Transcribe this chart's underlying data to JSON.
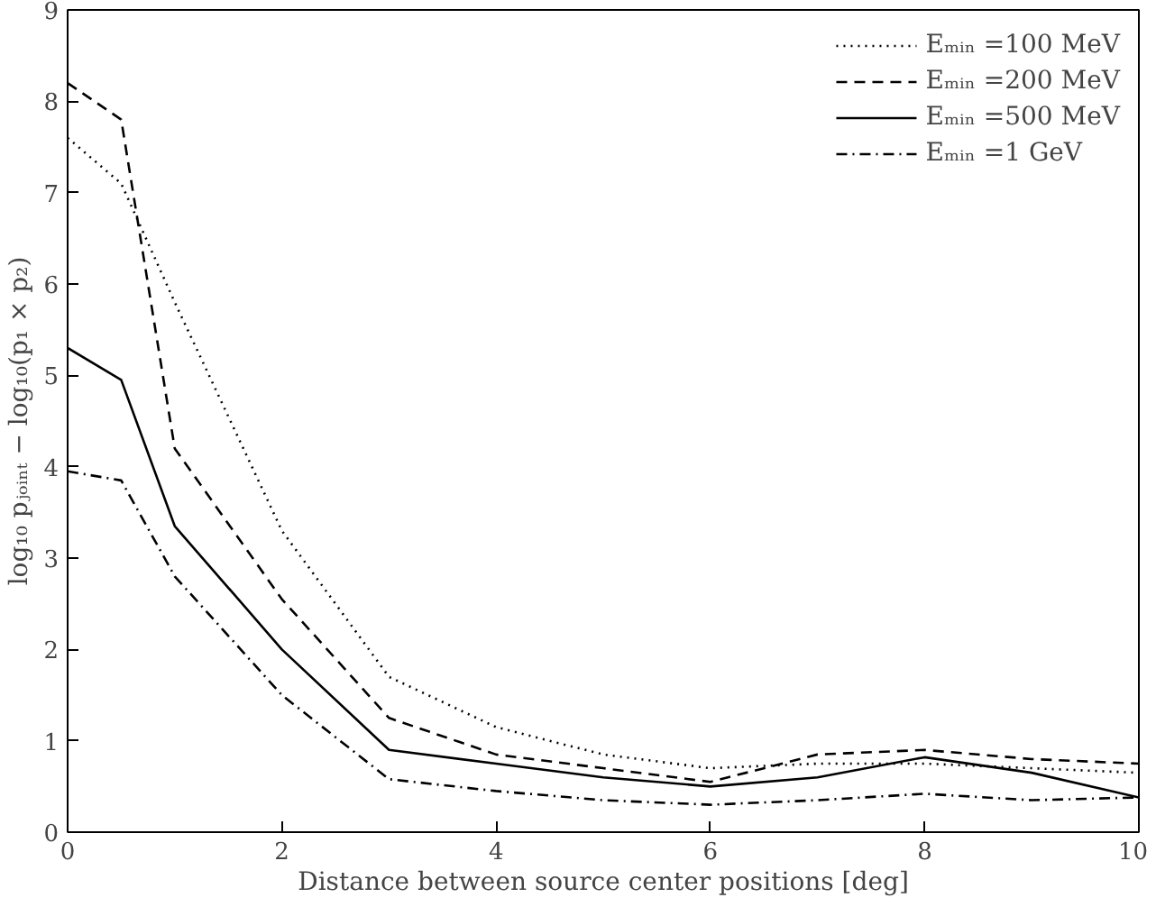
{
  "chart_data": {
    "type": "line",
    "xlabel": "Distance between source center positions [deg]",
    "ylabel": "log₁₀ pⱼₒᵢₙₜ − log₁₀(p₁ × p₂)",
    "x": [
      0,
      0.5,
      1,
      2,
      3,
      4,
      5,
      6,
      7,
      8,
      9,
      10
    ],
    "xlim": [
      0,
      10
    ],
    "ylim": [
      0,
      9
    ],
    "xticks": [
      0,
      2,
      4,
      6,
      8,
      10
    ],
    "yticks": [
      0,
      1,
      2,
      3,
      4,
      5,
      6,
      7,
      8,
      9
    ],
    "grid": false,
    "legend": "top right",
    "marker": "none",
    "series": [
      {
        "name": "Eₘᵢₙ =100 MeV",
        "color": "#000000",
        "line_style": "dotted",
        "values": [
          7.6,
          7.1,
          5.8,
          3.3,
          1.7,
          1.15,
          0.85,
          0.7,
          0.75,
          0.75,
          0.7,
          0.65
        ]
      },
      {
        "name": "Eₘᵢₙ =200 MeV",
        "color": "#000000",
        "line_style": "dashed",
        "values": [
          8.2,
          7.8,
          4.2,
          2.55,
          1.25,
          0.85,
          0.7,
          0.55,
          0.85,
          0.9,
          0.8,
          0.75
        ]
      },
      {
        "name": "Eₘᵢₙ =500 MeV",
        "color": "#000000",
        "line_style": "solid",
        "values": [
          5.3,
          4.95,
          3.35,
          2.0,
          0.9,
          0.75,
          0.6,
          0.5,
          0.6,
          0.82,
          0.65,
          0.38
        ]
      },
      {
        "name": "Eₘᵢₙ =1 GeV",
        "color": "#000000",
        "line_style": "dashdot",
        "values": [
          3.95,
          3.85,
          2.8,
          1.5,
          0.58,
          0.45,
          0.35,
          0.3,
          0.35,
          0.42,
          0.35,
          0.38
        ]
      }
    ]
  }
}
